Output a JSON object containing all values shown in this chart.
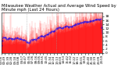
{
  "title": "Milwaukee Weather Actual and Average Wind Speed by Minute mph (Last 24 Hours)",
  "ylabel_right_ticks": [
    0,
    2,
    4,
    6,
    8,
    10,
    12,
    14,
    16,
    18
  ],
  "ylim": [
    0,
    20
  ],
  "n_points": 1440,
  "bar_color": "#ff0000",
  "line_color": "#0000ff",
  "bg_color": "#ffffff",
  "vline_color": "#999999",
  "vline_positions": [
    360,
    780
  ],
  "seed": 17,
  "title_fontsize": 3.8,
  "tick_fontsize": 3.2,
  "xtick_fontsize": 2.8
}
